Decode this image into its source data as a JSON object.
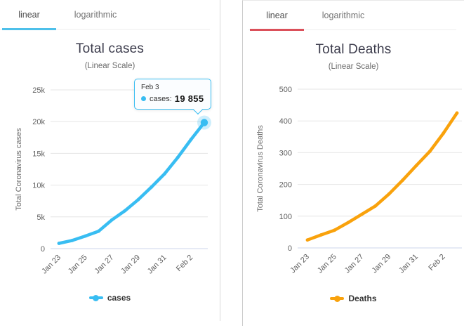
{
  "panels": [
    {
      "tabs": [
        {
          "label": "linear",
          "active": true
        },
        {
          "label": "logarithmic",
          "active": false
        }
      ],
      "title": "Total cases",
      "subtitle": "(Linear Scale)",
      "accent": "#4ec0ea"
    },
    {
      "tabs": [
        {
          "label": "linear",
          "active": true
        },
        {
          "label": "logarithmic",
          "active": false
        }
      ],
      "title": "Total Deaths",
      "subtitle": "(Linear Scale)",
      "accent": "#db505a"
    }
  ],
  "tooltip": {
    "title": "Feb 3",
    "series_label": "cases:",
    "value": "19 855"
  },
  "chart_data": [
    {
      "type": "line",
      "title": "Total cases",
      "subtitle": "(Linear Scale)",
      "xlabel": "",
      "ylabel": "Total Coronavirus cases",
      "legend": [
        "cases"
      ],
      "legend_position": "bottom",
      "color": "#38bdf2",
      "grid": true,
      "x": [
        "Jan 23",
        "Jan 24",
        "Jan 25",
        "Jan 26",
        "Jan 27",
        "Jan 28",
        "Jan 29",
        "Jan 30",
        "Jan 31",
        "Feb 1",
        "Feb 2",
        "Feb 3"
      ],
      "x_tick_labels": [
        "Jan 23",
        "Jan 25",
        "Jan 27",
        "Jan 29",
        "Jan 31",
        "Feb 2"
      ],
      "values": [
        830,
        1287,
        1975,
        2744,
        4515,
        5974,
        7711,
        9692,
        11791,
        14380,
        17205,
        19855
      ],
      "ylim": [
        0,
        25000
      ],
      "yticks": [
        0,
        5000,
        10000,
        15000,
        20000,
        25000
      ],
      "ytick_labels": [
        "0",
        "5k",
        "10k",
        "15k",
        "20k",
        "25k"
      ],
      "hovered_index": 11,
      "hovered_label": "Feb 3",
      "hovered_value": "19 855"
    },
    {
      "type": "line",
      "title": "Total Deaths",
      "subtitle": "(Linear Scale)",
      "xlabel": "",
      "ylabel": "Total Coronavirus Deaths",
      "legend": [
        "Deaths"
      ],
      "legend_position": "bottom",
      "color": "#f9a20c",
      "grid": true,
      "x": [
        "Jan 23",
        "Jan 24",
        "Jan 25",
        "Jan 26",
        "Jan 27",
        "Jan 28",
        "Jan 29",
        "Jan 30",
        "Jan 31",
        "Feb 1",
        "Feb 2",
        "Feb 3"
      ],
      "x_tick_labels": [
        "Jan 23",
        "Jan 25",
        "Jan 27",
        "Jan 29",
        "Jan 31",
        "Feb 2"
      ],
      "values": [
        25,
        41,
        56,
        80,
        106,
        132,
        170,
        213,
        259,
        304,
        361,
        425
      ],
      "ylim": [
        0,
        500
      ],
      "yticks": [
        0,
        100,
        200,
        300,
        400,
        500
      ],
      "ytick_labels": [
        "0",
        "100",
        "200",
        "300",
        "400",
        "500"
      ],
      "hovered_index": null
    }
  ]
}
